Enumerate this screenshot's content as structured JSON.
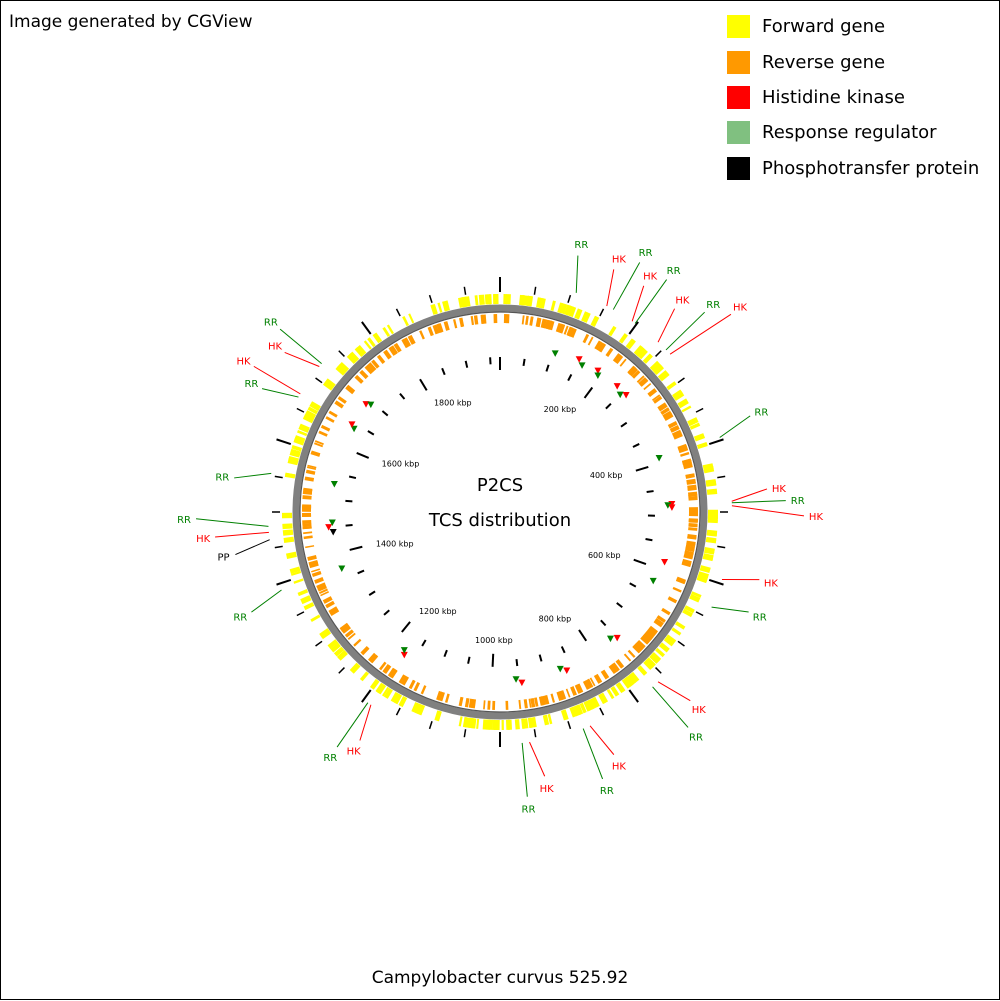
{
  "credit": "Image generated by CGView",
  "legend": [
    {
      "label": "Forward gene",
      "color": "#ffff00"
    },
    {
      "label": "Reverse gene",
      "color": "#ff9900"
    },
    {
      "label": "Histidine kinase",
      "color": "#ff0000"
    },
    {
      "label": "Response regulator",
      "color": "#80c080"
    },
    {
      "label": "Phosphotransfer protein",
      "color": "#000000"
    }
  ],
  "center": {
    "line1": "P2CS",
    "line2": "TCS distribution"
  },
  "footer": "Campylobacter curvus 525.92",
  "map": {
    "genome_length_kbp": 1970,
    "tick_labels": [
      "200 kbp",
      "400 kbp",
      "600 kbp",
      "800 kbp",
      "1000 kbp",
      "1200 kbp",
      "1400 kbp",
      "1600 kbp",
      "1800 kbp"
    ],
    "features": [
      {
        "label": "RR",
        "type": "RR",
        "kbp": 105
      },
      {
        "label": "HK",
        "type": "HK",
        "kbp": 150
      },
      {
        "label": "RR",
        "type": "RR",
        "kbp": 160
      },
      {
        "label": "HK",
        "type": "HK",
        "kbp": 190
      },
      {
        "label": "RR",
        "type": "RR",
        "kbp": 195
      },
      {
        "label": "HK",
        "type": "HK",
        "kbp": 235
      },
      {
        "label": "RR",
        "type": "RR",
        "kbp": 250
      },
      {
        "label": "HK",
        "type": "HK",
        "kbp": 258
      },
      {
        "label": "RR",
        "type": "RR",
        "kbp": 390
      },
      {
        "label": "HK",
        "type": "HK",
        "kbp": 478
      },
      {
        "label": "RR",
        "type": "RR",
        "kbp": 480
      },
      {
        "label": "HK",
        "type": "HK",
        "kbp": 484
      },
      {
        "label": "HK",
        "type": "HK",
        "kbp": 585
      },
      {
        "label": "RR",
        "type": "RR",
        "kbp": 625
      },
      {
        "label": "HK",
        "type": "HK",
        "kbp": 750
      },
      {
        "label": "RR",
        "type": "RR",
        "kbp": 760
      },
      {
        "label": "HK",
        "type": "HK",
        "kbp": 860
      },
      {
        "label": "RR",
        "type": "RR",
        "kbp": 870
      },
      {
        "label": "HK",
        "type": "HK",
        "kbp": 945
      },
      {
        "label": "RR",
        "type": "RR",
        "kbp": 955
      },
      {
        "label": "HK",
        "type": "HK",
        "kbp": 1170
      },
      {
        "label": "RR",
        "type": "RR",
        "kbp": 1175
      },
      {
        "label": "RR",
        "type": "RR",
        "kbp": 1370
      },
      {
        "label": "PP",
        "type": "PP",
        "kbp": 1440
      },
      {
        "label": "HK",
        "type": "HK",
        "kbp": 1450
      },
      {
        "label": "RR",
        "type": "RR",
        "kbp": 1458
      },
      {
        "label": "RR",
        "type": "RR",
        "kbp": 1530
      },
      {
        "label": "RR",
        "type": "RR",
        "kbp": 1640
      },
      {
        "label": "HK",
        "type": "HK",
        "kbp": 1645
      },
      {
        "label": "HK",
        "type": "HK",
        "kbp": 1690
      },
      {
        "label": "RR",
        "type": "RR",
        "kbp": 1695
      }
    ]
  }
}
